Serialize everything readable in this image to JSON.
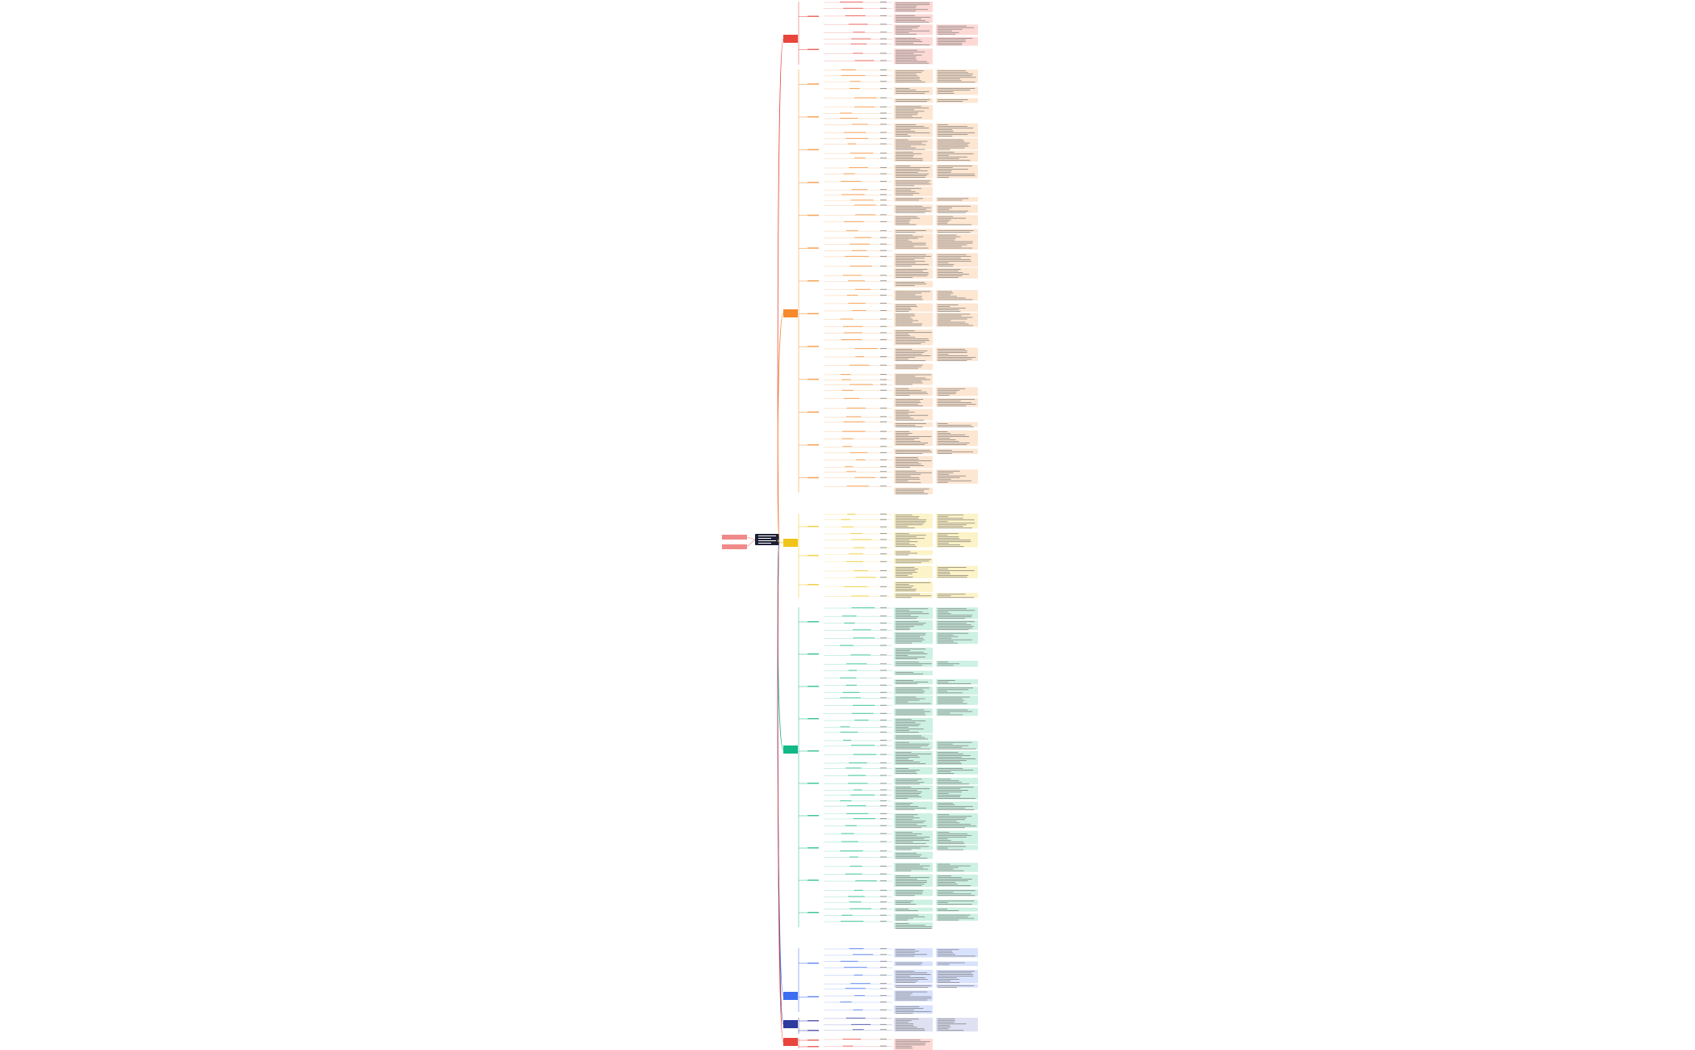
{
  "root_color": "#1d2036",
  "side_colors": [
    "#f08a8a",
    "#f08a8a"
  ],
  "branches": [
    {
      "color": "#e8453c",
      "tint": "#fdd9d6"
    },
    {
      "color": "#f5892b",
      "tint": "#fde6d2"
    },
    {
      "color": "#f0c419",
      "tint": "#fdf3c8"
    },
    {
      "color": "#12b886",
      "tint": "#cdf1e3"
    },
    {
      "color": "#3d6ef0",
      "tint": "#d9e2fd"
    },
    {
      "color": "#2f3a9e",
      "tint": "#dfe1f3"
    },
    {
      "color": "#e8453c",
      "tint": "#fdd9d6"
    }
  ]
}
